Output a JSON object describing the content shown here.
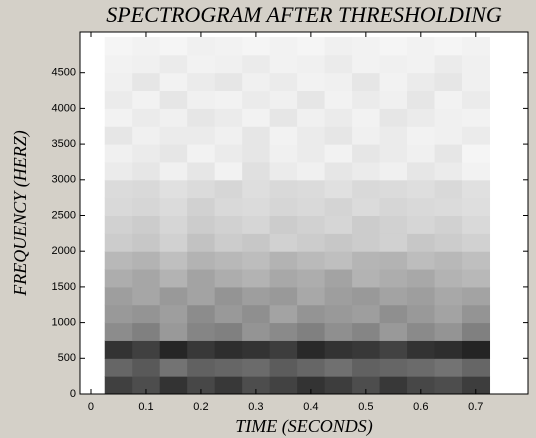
{
  "chart_data": {
    "type": "heatmap",
    "title": "SPECTROGRAM AFTER THRESHOLDING",
    "x_label": "TIME (SECONDS)",
    "y_label": "FREQUENCY (HERZ)",
    "x": [
      0.05,
      0.1,
      0.15,
      0.2,
      0.25,
      0.3,
      0.35,
      0.4,
      0.45,
      0.5,
      0.55,
      0.6,
      0.65,
      0.7
    ],
    "y": [
      125,
      375,
      625,
      875,
      1125,
      1375,
      1625,
      1875,
      2125,
      2375,
      2625,
      2875,
      3125,
      3375,
      3625,
      3875,
      4125,
      4375,
      4625,
      4875
    ],
    "z": [
      [
        0.75,
        0.7,
        0.8,
        0.72,
        0.78,
        0.7,
        0.74,
        0.8,
        0.76,
        0.7,
        0.78,
        0.72,
        0.7,
        0.76
      ],
      [
        0.6,
        0.65,
        0.55,
        0.62,
        0.6,
        0.58,
        0.64,
        0.6,
        0.56,
        0.62,
        0.6,
        0.58,
        0.55,
        0.6
      ],
      [
        0.8,
        0.75,
        0.85,
        0.78,
        0.82,
        0.8,
        0.76,
        0.84,
        0.8,
        0.78,
        0.74,
        0.8,
        0.82,
        0.86
      ],
      [
        0.45,
        0.5,
        0.4,
        0.48,
        0.5,
        0.42,
        0.46,
        0.5,
        0.44,
        0.48,
        0.4,
        0.46,
        0.42,
        0.5
      ],
      [
        0.4,
        0.42,
        0.38,
        0.45,
        0.4,
        0.44,
        0.36,
        0.42,
        0.4,
        0.38,
        0.44,
        0.4,
        0.36,
        0.42
      ],
      [
        0.38,
        0.35,
        0.4,
        0.36,
        0.42,
        0.38,
        0.4,
        0.34,
        0.38,
        0.4,
        0.36,
        0.38,
        0.34,
        0.36
      ],
      [
        0.32,
        0.35,
        0.3,
        0.36,
        0.32,
        0.3,
        0.34,
        0.32,
        0.36,
        0.3,
        0.32,
        0.34,
        0.3,
        0.28
      ],
      [
        0.28,
        0.3,
        0.25,
        0.3,
        0.28,
        0.26,
        0.3,
        0.27,
        0.25,
        0.29,
        0.3,
        0.26,
        0.28,
        0.25
      ],
      [
        0.2,
        0.22,
        0.18,
        0.24,
        0.2,
        0.22,
        0.18,
        0.2,
        0.22,
        0.2,
        0.18,
        0.22,
        0.2,
        0.18
      ],
      [
        0.18,
        0.2,
        0.16,
        0.2,
        0.18,
        0.16,
        0.2,
        0.18,
        0.16,
        0.2,
        0.18,
        0.16,
        0.18,
        0.15
      ],
      [
        0.15,
        0.16,
        0.14,
        0.18,
        0.15,
        0.14,
        0.16,
        0.15,
        0.17,
        0.14,
        0.16,
        0.15,
        0.14,
        0.13
      ],
      [
        0.14,
        0.15,
        0.12,
        0.14,
        0.16,
        0.13,
        0.15,
        0.14,
        0.12,
        0.15,
        0.14,
        0.13,
        0.15,
        0.12
      ],
      [
        0.08,
        0.1,
        0.06,
        0.1,
        0.05,
        0.12,
        0.08,
        0.06,
        0.1,
        0.08,
        0.06,
        0.1,
        0.08,
        0.05
      ],
      [
        0.06,
        0.08,
        0.1,
        0.05,
        0.08,
        0.1,
        0.06,
        0.08,
        0.05,
        0.1,
        0.08,
        0.06,
        0.1,
        0.04
      ],
      [
        0.1,
        0.06,
        0.08,
        0.08,
        0.06,
        0.1,
        0.05,
        0.08,
        0.1,
        0.06,
        0.08,
        0.05,
        0.06,
        0.08
      ],
      [
        0.05,
        0.08,
        0.06,
        0.1,
        0.08,
        0.05,
        0.1,
        0.06,
        0.08,
        0.05,
        0.1,
        0.08,
        0.06,
        0.05
      ],
      [
        0.08,
        0.05,
        0.1,
        0.06,
        0.05,
        0.08,
        0.06,
        0.1,
        0.05,
        0.08,
        0.06,
        0.1,
        0.05,
        0.08
      ],
      [
        0.06,
        0.1,
        0.05,
        0.08,
        0.1,
        0.06,
        0.08,
        0.05,
        0.06,
        0.1,
        0.05,
        0.08,
        0.1,
        0.06
      ],
      [
        0.05,
        0.06,
        0.08,
        0.05,
        0.06,
        0.08,
        0.05,
        0.06,
        0.08,
        0.05,
        0.06,
        0.05,
        0.08,
        0.06
      ],
      [
        0.04,
        0.05,
        0.04,
        0.06,
        0.05,
        0.04,
        0.05,
        0.04,
        0.06,
        0.05,
        0.04,
        0.05,
        0.04,
        0.05
      ]
    ],
    "xlim": [
      -0.02,
      0.795
    ],
    "ylim": [
      0,
      5070
    ],
    "xticks": [
      0,
      0.1,
      0.2,
      0.3,
      0.4,
      0.5,
      0.6,
      0.7
    ],
    "yticks": [
      0,
      500,
      1000,
      1500,
      2000,
      2500,
      3000,
      3500,
      4000,
      4500
    ]
  }
}
